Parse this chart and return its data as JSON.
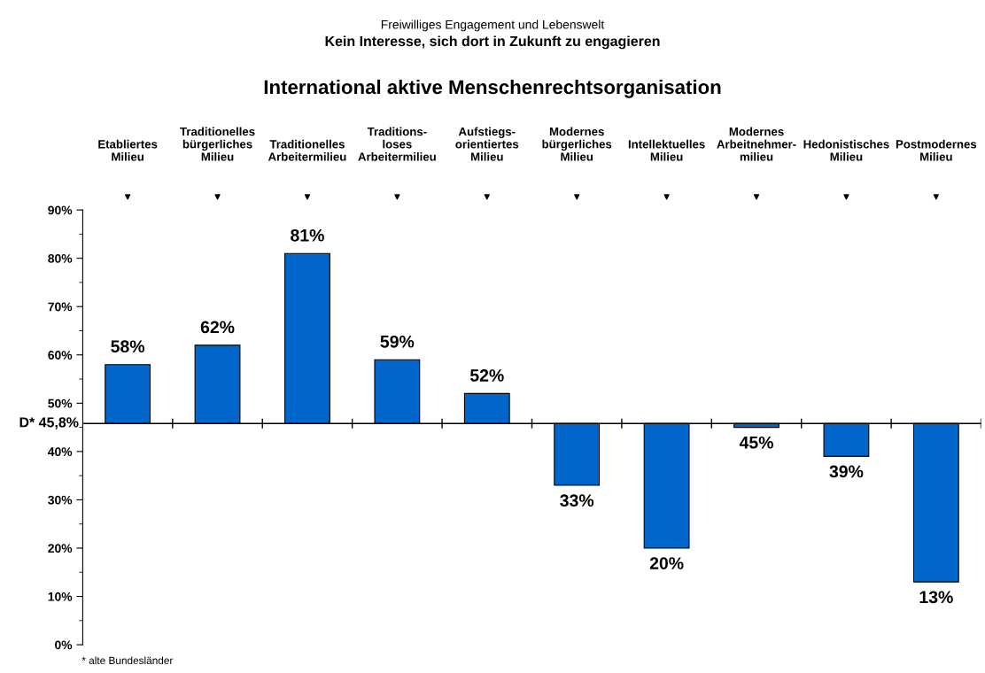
{
  "chart_data": {
    "type": "bar",
    "title": "International aktive Menschenrechtsorganisation",
    "subtitle": "Kein Interesse, sich dort in Zukunft zu engagieren",
    "annotations": [
      "Freiwilliges Engagement und Lebenswelt",
      "* alte Bundesländer"
    ],
    "categories": [
      "Etabliertes\nMilieu",
      "Traditionelles\nbürgerliches\nMilieu",
      "Traditionelles\nArbeitermilieu",
      "Traditions-\nloses\nArbeitermilieu",
      "Aufstiegs-\norientiertes\nMilieu",
      "Modernes\nbürgerliches\nMilieu",
      "Intellektuelles\nMilieu",
      "Modernes\nArbeitnehmer-\nmilieu",
      "Hedonistisches\nMilieu",
      "Postmodernes\nMilieu"
    ],
    "values": [
      12.2,
      16.2,
      35.2,
      13.2,
      6.2,
      -12.8,
      -25.8,
      -0.8,
      -6.8,
      -32.8
    ],
    "base": [
      45.8,
      45.8,
      45.8,
      45.8,
      45.8,
      45.8,
      45.8,
      45.8,
      45.8,
      45.8
    ],
    "color": "#0066cc",
    "value_labels": [
      "58%",
      "62%",
      "81%",
      "59%",
      "52%",
      "33%",
      "20%",
      "45%",
      "39%",
      "13%"
    ],
    "ylim": [
      0,
      90
    ],
    "yticks": [
      {
        "value": 0,
        "label": "0%"
      },
      {
        "value": 10,
        "label": "10%"
      },
      {
        "value": 20,
        "label": "20%"
      },
      {
        "value": 30,
        "label": "30%"
      },
      {
        "value": 40,
        "label": "40%"
      },
      {
        "value": 50,
        "label": "50%"
      },
      {
        "value": 60,
        "label": "60%"
      },
      {
        "value": 70,
        "label": "70%"
      },
      {
        "value": 80,
        "label": "80%"
      },
      {
        "value": 90,
        "label": "90%"
      }
    ],
    "ref_lines": [
      {
        "axis": "y",
        "value": 45.8,
        "label": "D* 45,8%"
      }
    ],
    "grid": false,
    "legend": false
  }
}
